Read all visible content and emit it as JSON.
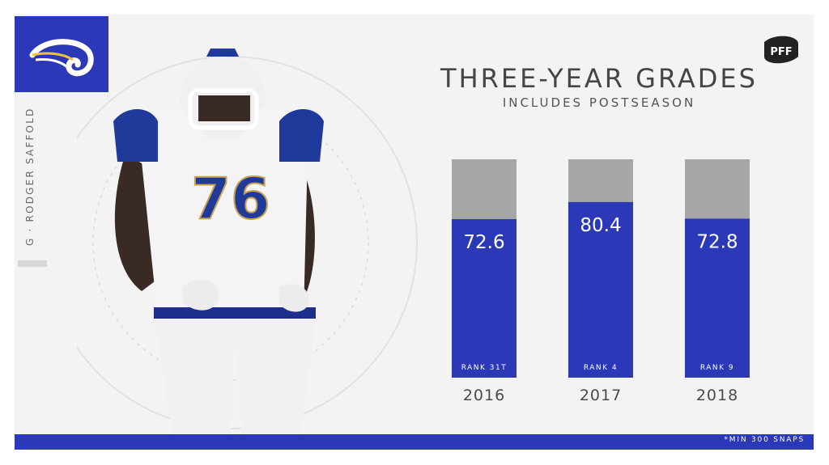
{
  "player": {
    "caption": "G · RODGER SAFFOLD",
    "jersey_number": "76"
  },
  "team": {
    "logo_icon": "rams-horn-logo-icon",
    "color": "#2b38b7"
  },
  "brand": {
    "logo_icon": "pff-logo-icon",
    "text": "PFF"
  },
  "title": "THREE-YEAR GRADES",
  "subtitle": "INCLUDES POSTSEASON",
  "footnote": "*MIN 300 SNAPS",
  "colors": {
    "bar_fill": "#2b38b7",
    "bar_track": "#a6a6a6",
    "background": "#f3f3f3"
  },
  "chart_data": {
    "type": "bar",
    "categories": [
      "2016",
      "2017",
      "2018"
    ],
    "values": [
      72.6,
      80.4,
      72.8
    ],
    "value_labels": [
      "72.6",
      "80.4",
      "72.8"
    ],
    "ranks": [
      "RANK 31T",
      "RANK 4",
      "RANK 9"
    ],
    "title": "THREE-YEAR GRADES",
    "subtitle": "INCLUDES POSTSEASON",
    "xlabel": "",
    "ylabel": "",
    "ylim": [
      0,
      100
    ],
    "grid": false,
    "legend": "none"
  }
}
